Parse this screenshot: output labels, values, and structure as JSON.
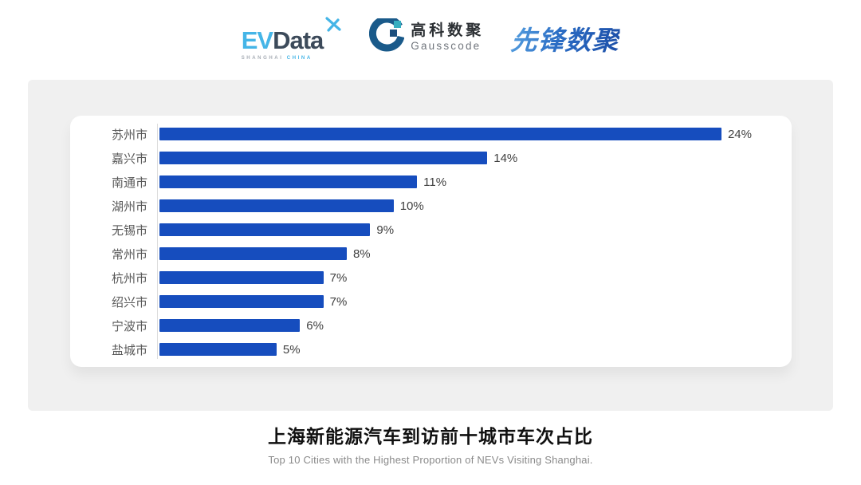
{
  "header": {
    "evdata_logo": {
      "part_ev": "EV",
      "part_data": "Data",
      "sub_left": "SHANGHAI",
      "sub_right": "CHINA",
      "accent_color": "#45b5e7",
      "dark_color": "#3c4a5a"
    },
    "gausscode_logo": {
      "name_cn": "高科数聚",
      "name_en": "Gausscode",
      "ring_color": "#1a5a8a",
      "teal_color": "#36aec0"
    },
    "xianfeng_logo": {
      "text": "先锋数聚",
      "color": "#2a6cc4"
    }
  },
  "chart_data": {
    "type": "bar",
    "orientation": "horizontal",
    "categories": [
      "苏州市",
      "嘉兴市",
      "南通市",
      "湖州市",
      "无锡市",
      "常州市",
      "杭州市",
      "绍兴市",
      "宁波市",
      "盐城市"
    ],
    "values": [
      24,
      14,
      11,
      10,
      9,
      8,
      7,
      7,
      6,
      5
    ],
    "value_labels": [
      "24%",
      "14%",
      "11%",
      "10%",
      "9%",
      "8%",
      "7%",
      "7%",
      "6%",
      "5%"
    ],
    "xlim": [
      0,
      24
    ],
    "bar_color": "#164dbe",
    "grid": false,
    "legend": "none",
    "title": "上海新能源汽车到访前十城市车次占比",
    "subtitle": "Top 10 Cities with the Highest Proportion of  NEVs Visiting Shanghai."
  },
  "footer": {
    "title": "上海新能源汽车到访前十城市车次占比",
    "subtitle": "Top 10 Cities with the Highest Proportion of  NEVs Visiting Shanghai."
  }
}
